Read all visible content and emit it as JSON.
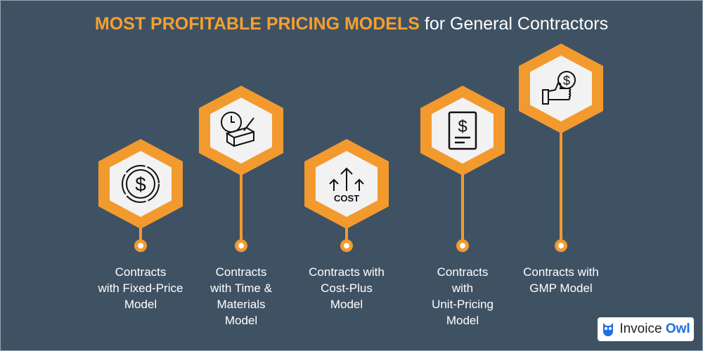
{
  "title": {
    "highlight": "MOST PROFITABLE PRICING MODELS",
    "rest": " for General Contractors"
  },
  "colors": {
    "background": "#3f5264",
    "accent": "#f39a2e"
  },
  "items": [
    {
      "label": "Contracts\nwith Fixed-Price\nModel",
      "icon": "dollar-coin-icon"
    },
    {
      "label": "Contracts\nwith Time &\nMaterials\nModel",
      "icon": "clock-brick-icon"
    },
    {
      "label": "Contracts with\nCost-Plus\nModel",
      "icon": "cost-arrows-icon",
      "icon_text": "COST"
    },
    {
      "label": "Contracts\nwith\nUnit-Pricing\nModel",
      "icon": "invoice-dollar-icon"
    },
    {
      "label": "Contracts with\nGMP Model",
      "icon": "thumbs-up-dollar-icon"
    }
  ],
  "logo": {
    "name_a": "Invoice",
    "name_b": "Owl"
  }
}
